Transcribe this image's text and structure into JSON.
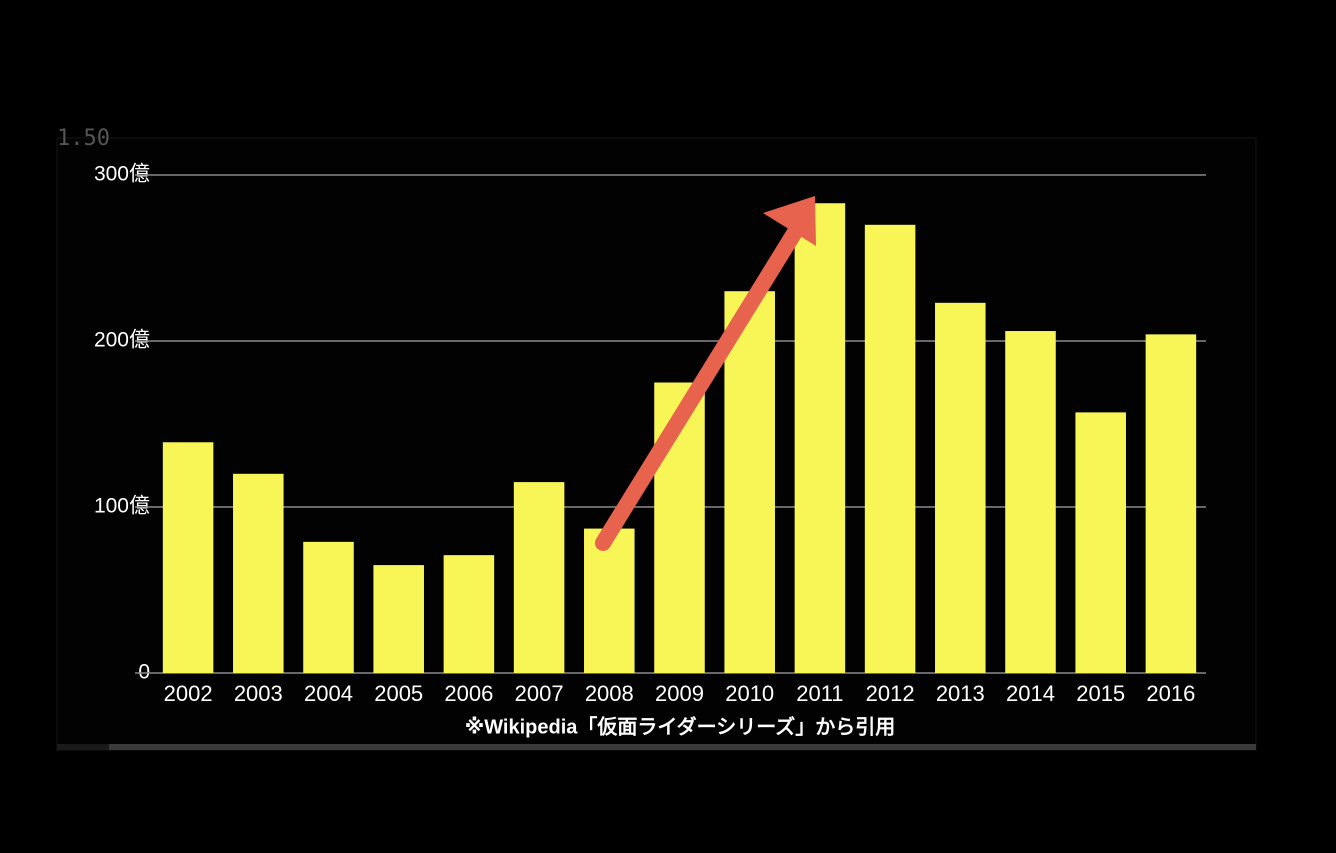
{
  "overlay_text": "1.50",
  "chart_data": {
    "type": "bar",
    "categories": [
      "2002",
      "2003",
      "2004",
      "2005",
      "2006",
      "2007",
      "2008",
      "2009",
      "2010",
      "2011",
      "2012",
      "2013",
      "2014",
      "2015",
      "2016"
    ],
    "values": [
      139,
      120,
      79,
      65,
      71,
      115,
      87,
      175,
      230,
      283,
      270,
      223,
      206,
      157,
      204
    ],
    "color": "#f8f556",
    "ylim": [
      0,
      300
    ],
    "yticks": [
      0,
      {
        "value": 100,
        "label": "100億"
      },
      {
        "value": 200,
        "label": "200億"
      },
      {
        "value": 300,
        "label": "300億"
      }
    ],
    "grid": true,
    "source_note": "※Wikipedia「仮面ライダーシリーズ」から引用"
  }
}
